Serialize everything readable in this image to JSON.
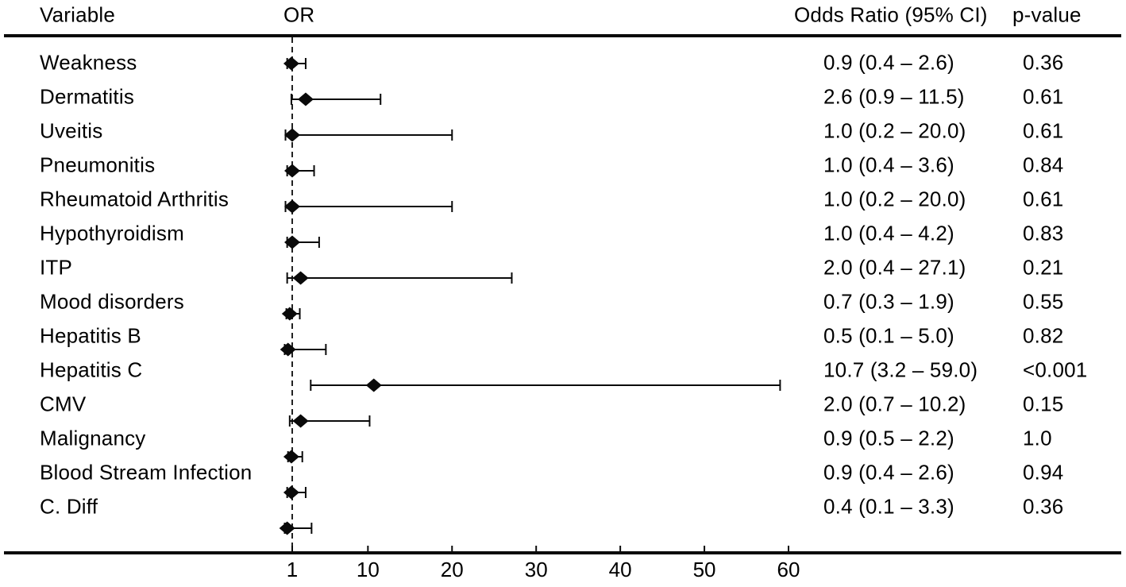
{
  "figure": {
    "background_color": "#ffffff",
    "ink_color": "#0a0a0a"
  },
  "header": {
    "variable": "Variable",
    "or": "OR",
    "odds_ratio_ci": "Odds Ratio (95% CI)",
    "p_value": "p-value"
  },
  "chart_data": {
    "type": "forest",
    "title": "",
    "xlabel": "",
    "ylabel": "",
    "x_axis": {
      "scale": "linear",
      "ticks": [
        1,
        10,
        20,
        30,
        40,
        50,
        60
      ],
      "range_shown": [
        1,
        62
      ],
      "reference_line": 1
    },
    "legend": "none",
    "grid": false,
    "marker": "filled-diamond",
    "rows": [
      {
        "variable": "Weakness",
        "or": 0.9,
        "ci_low": 0.4,
        "ci_high": 2.6,
        "or_ci_label": "0.9 (0.4 – 2.6)",
        "p_value": "0.36"
      },
      {
        "variable": "Dermatitis",
        "or": 2.6,
        "ci_low": 0.9,
        "ci_high": 11.5,
        "or_ci_label": "2.6 (0.9 – 11.5)",
        "p_value": "0.61"
      },
      {
        "variable": "Uveitis",
        "or": 1.0,
        "ci_low": 0.2,
        "ci_high": 20.0,
        "or_ci_label": "1.0 (0.2 – 20.0)",
        "p_value": "0.61"
      },
      {
        "variable": "Pneumonitis",
        "or": 1.0,
        "ci_low": 0.4,
        "ci_high": 3.6,
        "or_ci_label": "1.0 (0.4 – 3.6)",
        "p_value": "0.84"
      },
      {
        "variable": "Rheumatoid Arthritis",
        "or": 1.0,
        "ci_low": 0.2,
        "ci_high": 20.0,
        "or_ci_label": "1.0 (0.2 – 20.0)",
        "p_value": "0.61"
      },
      {
        "variable": "Hypothyroidism",
        "or": 1.0,
        "ci_low": 0.4,
        "ci_high": 4.2,
        "or_ci_label": "1.0 (0.4 – 4.2)",
        "p_value": "0.83"
      },
      {
        "variable": "ITP",
        "or": 2.0,
        "ci_low": 0.4,
        "ci_high": 27.1,
        "or_ci_label": "2.0 (0.4 – 27.1)",
        "p_value": "0.21"
      },
      {
        "variable": "Mood disorders",
        "or": 0.7,
        "ci_low": 0.3,
        "ci_high": 1.9,
        "or_ci_label": "0.7 (0.3 – 1.9)",
        "p_value": "0.55"
      },
      {
        "variable": "Hepatitis B",
        "or": 0.5,
        "ci_low": 0.1,
        "ci_high": 5.0,
        "or_ci_label": "0.5 (0.1 – 5.0)",
        "p_value": "0.82"
      },
      {
        "variable": "Hepatitis C",
        "or": 10.7,
        "ci_low": 3.2,
        "ci_high": 59.0,
        "or_ci_label": "10.7 (3.2 – 59.0)",
        "p_value": "<0.001"
      },
      {
        "variable": "CMV",
        "or": 2.0,
        "ci_low": 0.7,
        "ci_high": 10.2,
        "or_ci_label": "2.0 (0.7 – 10.2)",
        "p_value": "0.15"
      },
      {
        "variable": "Malignancy",
        "or": 0.9,
        "ci_low": 0.5,
        "ci_high": 2.2,
        "or_ci_label": "0.9 (0.5 – 2.2)",
        "p_value": "1.0"
      },
      {
        "variable": "Blood Stream Infection",
        "or": 0.9,
        "ci_low": 0.4,
        "ci_high": 2.6,
        "or_ci_label": "0.9 (0.4 – 2.6)",
        "p_value": "0.94"
      },
      {
        "variable": "C. Diff",
        "or": 0.4,
        "ci_low": 0.1,
        "ci_high": 3.3,
        "or_ci_label": "0.4 (0.1 – 3.3)",
        "p_value": "0.36"
      }
    ]
  }
}
